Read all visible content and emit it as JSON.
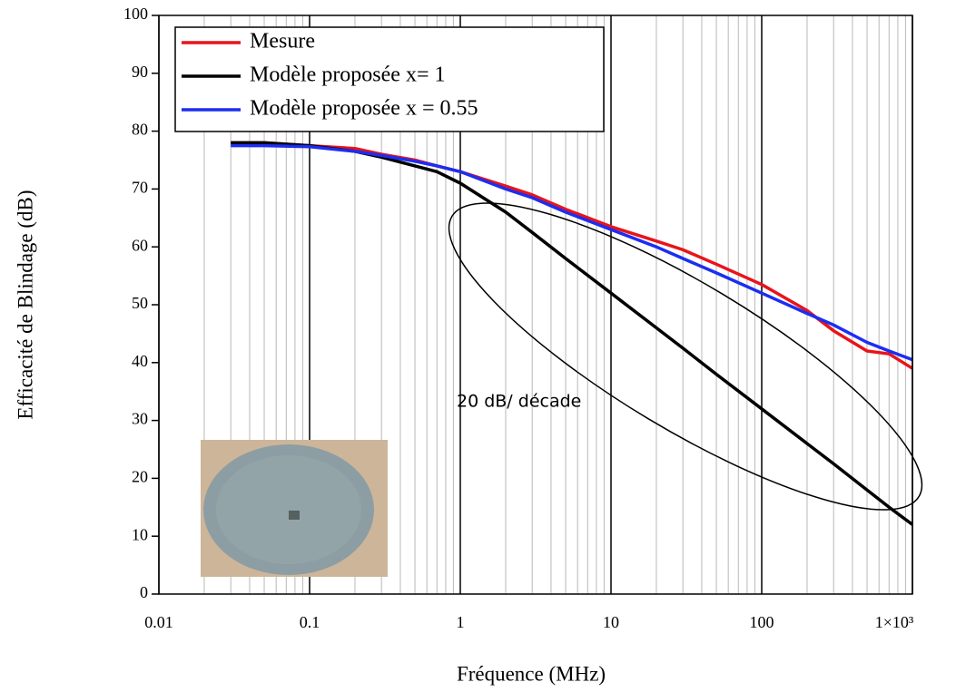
{
  "chart_data": {
    "type": "line",
    "x_label": "Fréquence (MHz)",
    "y_label": "Efficacité de Blindage (dB)",
    "annotation": "20 dB/ décade",
    "x": [
      0.03,
      0.05,
      0.1,
      0.2,
      0.3,
      0.5,
      0.7,
      1,
      2,
      3,
      5,
      10,
      20,
      30,
      50,
      100,
      200,
      300,
      500,
      700,
      1000
    ],
    "series": [
      {
        "name": "Mesure",
        "color": "#e8141b",
        "values": [
          78,
          78,
          77.5,
          77,
          76,
          75,
          74,
          73,
          70.5,
          69,
          66.5,
          63.5,
          61,
          59.5,
          57,
          53.5,
          49,
          45.5,
          42,
          41.5,
          39
        ]
      },
      {
        "name": "Modèle proposée x= 1",
        "color": "#000000",
        "values": [
          78,
          78,
          77.5,
          76.5,
          75.5,
          74,
          73,
          71,
          66,
          62.5,
          58,
          52,
          46,
          42.5,
          38,
          32,
          26,
          22.5,
          18,
          15,
          12
        ]
      },
      {
        "name": "Modèle proposée x = 0.55",
        "color": "#1c2ef0",
        "values": [
          77.5,
          77.5,
          77.3,
          76.5,
          75.8,
          74.8,
          74,
          73,
          70,
          68.5,
          66,
          63,
          60,
          58,
          55.5,
          52,
          48.5,
          46.5,
          43.5,
          42,
          40.5
        ]
      }
    ],
    "xlim": [
      0.01,
      1000
    ],
    "ylim": [
      0,
      100
    ],
    "xticks": [
      0.01,
      0.1,
      1,
      10,
      100,
      {
        "value": 1000,
        "label": "1×10³"
      }
    ],
    "yticks": [
      0,
      10,
      20,
      30,
      40,
      50,
      60,
      70,
      80,
      90,
      100
    ],
    "x_log": true,
    "grid": true,
    "minor_grid": true,
    "legend": "upper left"
  }
}
